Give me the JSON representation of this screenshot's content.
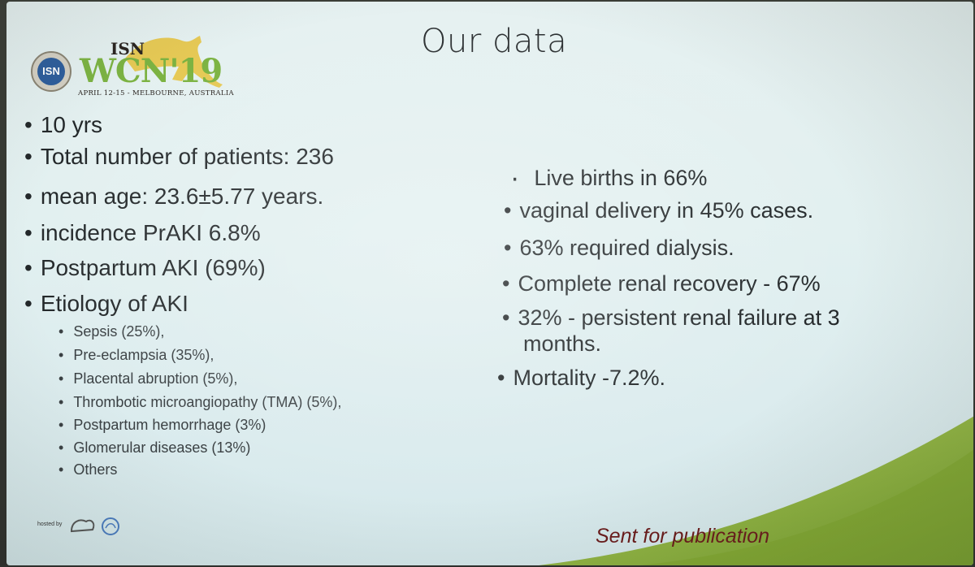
{
  "slide": {
    "title": "Our data",
    "logo": {
      "seal": "ISN",
      "org": "ISN",
      "event": "WCN'19",
      "dates": "APRIL 12-15 - MELBOURNE, AUSTRALIA"
    },
    "left_items": [
      "10 yrs",
      "Total number of patients: 236",
      "mean age: 23.6±5.77 years.",
      "incidence PrAKI 6.8%",
      "Postpartum AKI (69%)",
      "Etiology of AKI"
    ],
    "etiology_items": [
      "Sepsis (25%),",
      "Pre-eclampsia (35%),",
      "Placental abruption (5%),",
      "Thrombotic microangiopathy (TMA) (5%),",
      "Postpartum hemorrhage (3%)",
      "Glomerular diseases (13%)",
      "Others"
    ],
    "right_items": [
      "Live births in 66%",
      "vaginal delivery in 45% cases.",
      "63% required dialysis.",
      "Complete renal recovery - 67%",
      "32% - persistent renal failure at 3",
      "Mortality -7.2%."
    ],
    "right_wrap": "months.",
    "hosted_by": "hosted by",
    "footnote": "Sent for publication",
    "colors": {
      "accent_green": "#7cb342",
      "text": "#23282a",
      "footnote": "#6a1a1a"
    }
  }
}
